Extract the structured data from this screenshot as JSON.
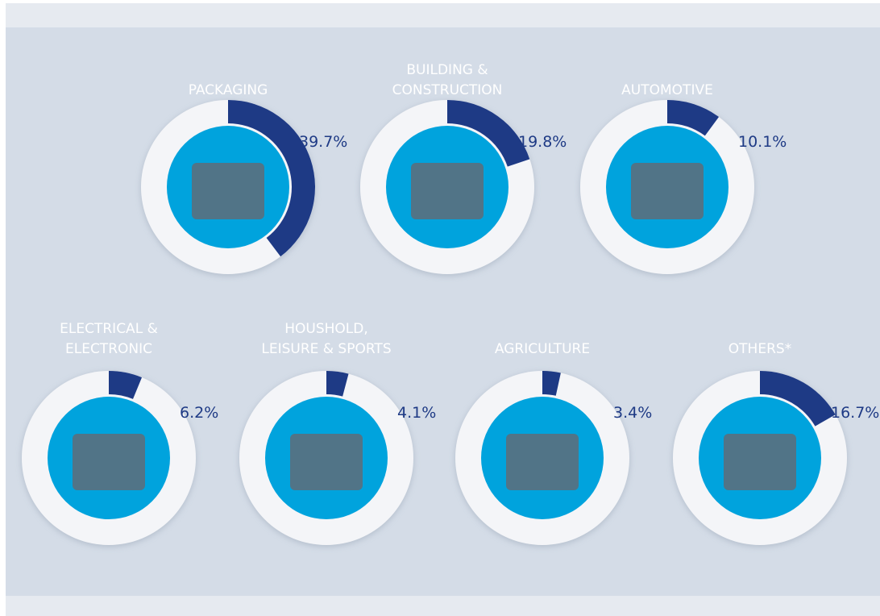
{
  "chart_data": [
    {
      "type": "donut",
      "title": [
        "PACKAGING"
      ],
      "values": [
        39.7
      ],
      "value_labels": [
        "39.7%"
      ]
    },
    {
      "type": "donut",
      "title": [
        "BUILDING &",
        "CONSTRUCTION"
      ],
      "values": [
        19.8
      ],
      "value_labels": [
        "19.8%"
      ]
    },
    {
      "type": "donut",
      "title": [
        "AUTOMOTIVE"
      ],
      "values": [
        10.1
      ],
      "value_labels": [
        "10.1%"
      ]
    },
    {
      "type": "donut",
      "title": [
        "ELECTRICAL &",
        "ELECTRONIC"
      ],
      "values": [
        6.2
      ],
      "value_labels": [
        "6.2%"
      ]
    },
    {
      "type": "donut",
      "title": [
        "HOUSHOLD,",
        "LEISURE & SPORTS"
      ],
      "values": [
        4.1
      ],
      "value_labels": [
        "4.1%"
      ]
    },
    {
      "type": "donut",
      "title": [
        "AGRICULTURE"
      ],
      "values": [
        3.4
      ],
      "value_labels": [
        "3.4%"
      ]
    },
    {
      "type": "donut",
      "title": [
        "OTHERS*"
      ],
      "values": [
        16.7
      ],
      "value_labels": [
        "16.7%"
      ]
    }
  ]
}
